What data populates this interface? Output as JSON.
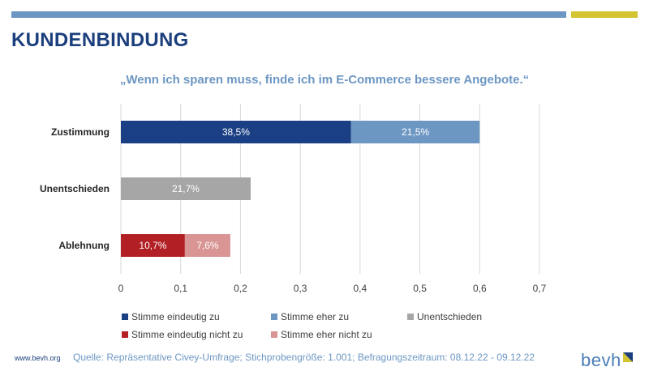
{
  "header": {
    "title": "KUNDENBINDUNG",
    "bar_colors": [
      "#6d97c3",
      "#d3c432"
    ]
  },
  "chart_data": {
    "type": "bar",
    "orientation": "horizontal",
    "stacked": true,
    "title": "„Wenn ich sparen muss, finde ich im E-Commerce bessere Angebote.“",
    "categories": [
      "Zustimmung",
      "Unentschieden",
      "Ablehnung"
    ],
    "xlim": [
      0,
      0.7
    ],
    "xticks": [
      "0",
      "0,1",
      "0,2",
      "0,3",
      "0,4",
      "0,5",
      "0,6",
      "0,7"
    ],
    "grid": "vertical",
    "legend_position": "bottom",
    "segments": [
      {
        "category": "Zustimmung",
        "series": "Stimme eindeutig zu",
        "start": 0,
        "value": 0.385,
        "label": "38,5%",
        "color": "#1b3f84",
        "label_color": "#ffffff"
      },
      {
        "category": "Zustimmung",
        "series": "Stimme eher zu",
        "start": 0.385,
        "value": 0.215,
        "label": "21,5%",
        "color": "#6d97c3",
        "label_color": "#ffffff"
      },
      {
        "category": "Unentschieden",
        "series": "Unentschieden",
        "start": 0,
        "value": 0.217,
        "label": "21,7%",
        "color": "#a6a6a6",
        "label_color": "#ffffff"
      },
      {
        "category": "Ablehnung",
        "series": "Stimme eindeutig nicht zu",
        "start": 0,
        "value": 0.107,
        "label": "10,7%",
        "color": "#b21f24",
        "label_color": "#ffffff"
      },
      {
        "category": "Ablehnung",
        "series": "Stimme eher nicht zu",
        "start": 0.107,
        "value": 0.076,
        "label": "7,6%",
        "color": "#d99594",
        "label_color": "#ffffff"
      }
    ],
    "legend": [
      {
        "name": "Stimme eindeutig zu",
        "color": "#1b3f84"
      },
      {
        "name": "Stimme eher zu",
        "color": "#6d97c3"
      },
      {
        "name": "Unentschieden",
        "color": "#a6a6a6"
      },
      {
        "name": "Stimme eindeutig nicht zu",
        "color": "#b21f24"
      },
      {
        "name": "Stimme eher nicht zu",
        "color": "#d99594"
      }
    ]
  },
  "footer": {
    "url": "www.bevh.org",
    "source": "Quelle: Repräsentative Civey-Umfrage; Stichprobengröße: 1.001; Befragungszeitraum: 08.12.22 - 09.12.22",
    "logo_text": "bevh",
    "logo_color": "#4a7db6"
  }
}
